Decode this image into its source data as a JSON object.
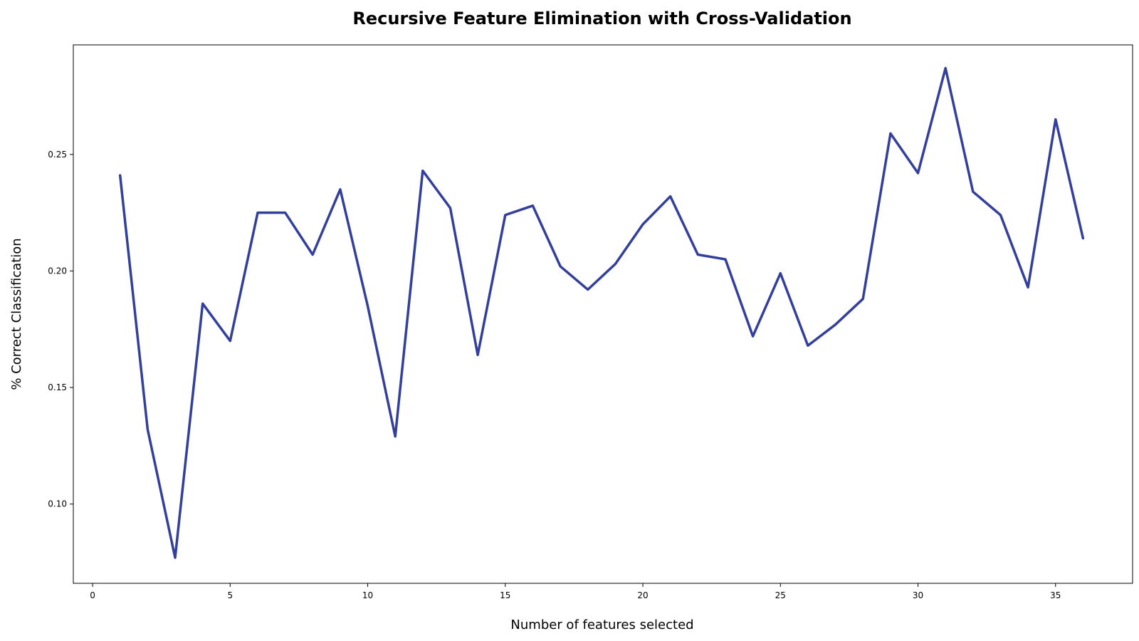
{
  "chart_data": {
    "type": "line",
    "title": "Recursive Feature Elimination with Cross-Validation",
    "xlabel": "Number of features selected",
    "ylabel": "% Correct Classification",
    "xlim": [
      -0.7,
      37.8
    ],
    "ylim": [
      0.066,
      0.297
    ],
    "xticks": [
      0,
      5,
      10,
      15,
      20,
      25,
      30,
      35
    ],
    "yticks": [
      0.1,
      0.15,
      0.2,
      0.25
    ],
    "ytick_labels": [
      "0.10",
      "0.15",
      "0.20",
      "0.25"
    ],
    "grid": false,
    "line_color": "#333f9c",
    "series": [
      {
        "x": [
          1,
          2,
          3,
          4,
          5,
          6,
          7,
          8,
          9,
          10,
          11,
          12,
          13,
          14,
          15,
          16,
          17,
          18,
          19,
          20,
          21,
          22,
          23,
          24,
          25,
          26,
          27,
          28,
          29,
          30,
          31,
          32,
          33,
          34,
          35,
          36
        ],
        "values": [
          0.241,
          0.132,
          0.077,
          0.186,
          0.17,
          0.225,
          0.225,
          0.207,
          0.235,
          0.185,
          0.129,
          0.243,
          0.227,
          0.164,
          0.224,
          0.228,
          0.202,
          0.192,
          0.203,
          0.22,
          0.232,
          0.207,
          0.205,
          0.172,
          0.199,
          0.168,
          0.177,
          0.188,
          0.259,
          0.242,
          0.287,
          0.234,
          0.224,
          0.193,
          0.265,
          0.214
        ]
      }
    ]
  }
}
